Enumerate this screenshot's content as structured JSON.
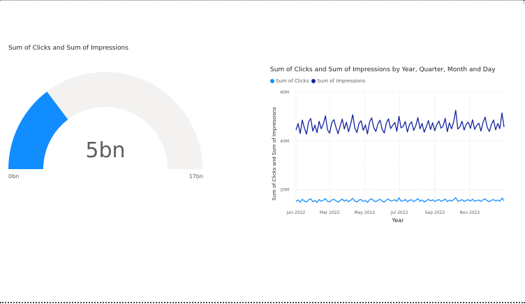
{
  "gauge": {
    "title": "Sum of Clicks and Sum of Impressions",
    "value_label": "5bn",
    "min_label": "0bn",
    "max_label": "17bn",
    "value": 5,
    "min": 0,
    "max": 17,
    "fill_color": "#118DFF",
    "track_color": "#F3F2F1"
  },
  "line_chart": {
    "title": "Sum of Clicks and Sum of Impressions by Year, Quarter, Month and Day",
    "legend": [
      {
        "name": "Sum of Clicks",
        "color": "#118DFF"
      },
      {
        "name": "Sum of Impressions",
        "color": "#12239E"
      }
    ]
  },
  "chart_data": [
    {
      "type": "gauge",
      "title": "Sum of Clicks and Sum of Impressions",
      "value": 5,
      "min": 0,
      "max": 17,
      "unit": "bn"
    },
    {
      "type": "line",
      "title": "Sum of Clicks and Sum of Impressions by Year, Quarter, Month and Day",
      "xlabel": "Year",
      "ylabel": "Sum of Clicks and Sum of Impressions",
      "x_ticks": [
        "Jan 2022",
        "Mar 2022",
        "May 2022",
        "Jul 2022",
        "Sep 2022",
        "Nov 2022"
      ],
      "y_ticks": [
        "20M",
        "40M",
        "60M"
      ],
      "ylim": [
        15,
        60
      ],
      "xlim": [
        "2022-01-01",
        "2022-12-31"
      ],
      "grid": true,
      "legend_position": "top-left",
      "series": [
        {
          "name": "Sum of Clicks",
          "color": "#118DFF",
          "values": [
            15.2,
            15.8,
            14.9,
            16.1,
            15.4,
            15.0,
            15.9,
            16.3,
            15.1,
            15.6,
            14.8,
            16.0,
            15.3,
            15.7,
            16.4,
            15.2,
            15.0,
            15.8,
            16.1,
            15.5,
            14.9,
            15.6,
            16.2,
            15.3,
            15.9,
            15.1,
            15.7,
            16.5,
            15.4,
            15.0,
            15.8,
            16.0,
            15.2,
            15.6,
            14.8,
            15.9,
            16.3,
            15.5,
            15.1,
            15.7,
            16.1,
            15.3,
            15.0,
            15.8,
            16.2,
            15.4,
            15.6,
            15.9,
            15.2,
            16.7,
            15.3,
            15.5,
            16.0,
            15.1,
            15.7,
            15.9,
            15.2,
            15.6,
            16.4,
            15.3,
            15.8,
            15.0,
            15.5,
            16.1,
            15.4,
            15.9,
            15.2,
            15.7,
            16.0,
            15.3,
            15.6,
            16.2,
            15.1,
            15.8,
            15.4,
            15.9,
            16.8,
            15.3,
            15.5,
            16.0,
            15.2,
            15.7,
            15.9,
            15.4,
            16.1,
            15.3,
            15.6,
            15.8,
            15.2,
            15.9,
            16.3,
            15.5,
            15.1,
            15.7,
            16.0,
            15.4,
            15.8,
            15.3,
            16.6,
            15.5
          ]
        },
        {
          "name": "Sum of Impressions",
          "color": "#12239E",
          "values": [
            44.5,
            47.2,
            43.1,
            48.6,
            45.3,
            42.8,
            47.9,
            49.2,
            44.1,
            46.5,
            43.4,
            48.1,
            45.0,
            47.0,
            50.3,
            44.6,
            43.2,
            47.5,
            48.8,
            45.7,
            43.0,
            46.2,
            49.0,
            44.9,
            47.7,
            43.8,
            46.9,
            50.8,
            45.2,
            43.5,
            47.3,
            48.3,
            44.4,
            46.6,
            42.9,
            47.8,
            49.5,
            45.5,
            43.9,
            47.1,
            48.5,
            44.8,
            43.3,
            47.4,
            49.1,
            45.1,
            46.4,
            47.6,
            44.0,
            50.1,
            45.4,
            46.0,
            48.0,
            43.7,
            46.8,
            47.9,
            44.3,
            46.3,
            49.6,
            45.0,
            47.2,
            43.6,
            45.9,
            48.4,
            44.7,
            47.5,
            44.2,
            46.7,
            48.2,
            45.3,
            46.1,
            49.3,
            43.8,
            47.4,
            45.0,
            47.8,
            52.6,
            44.9,
            45.8,
            48.1,
            44.5,
            46.9,
            47.7,
            45.2,
            48.7,
            44.8,
            46.4,
            47.3,
            44.1,
            47.6,
            49.8,
            45.6,
            43.9,
            46.8,
            48.6,
            44.6,
            47.2,
            45.1,
            51.5,
            45.7
          ]
        }
      ]
    }
  ]
}
